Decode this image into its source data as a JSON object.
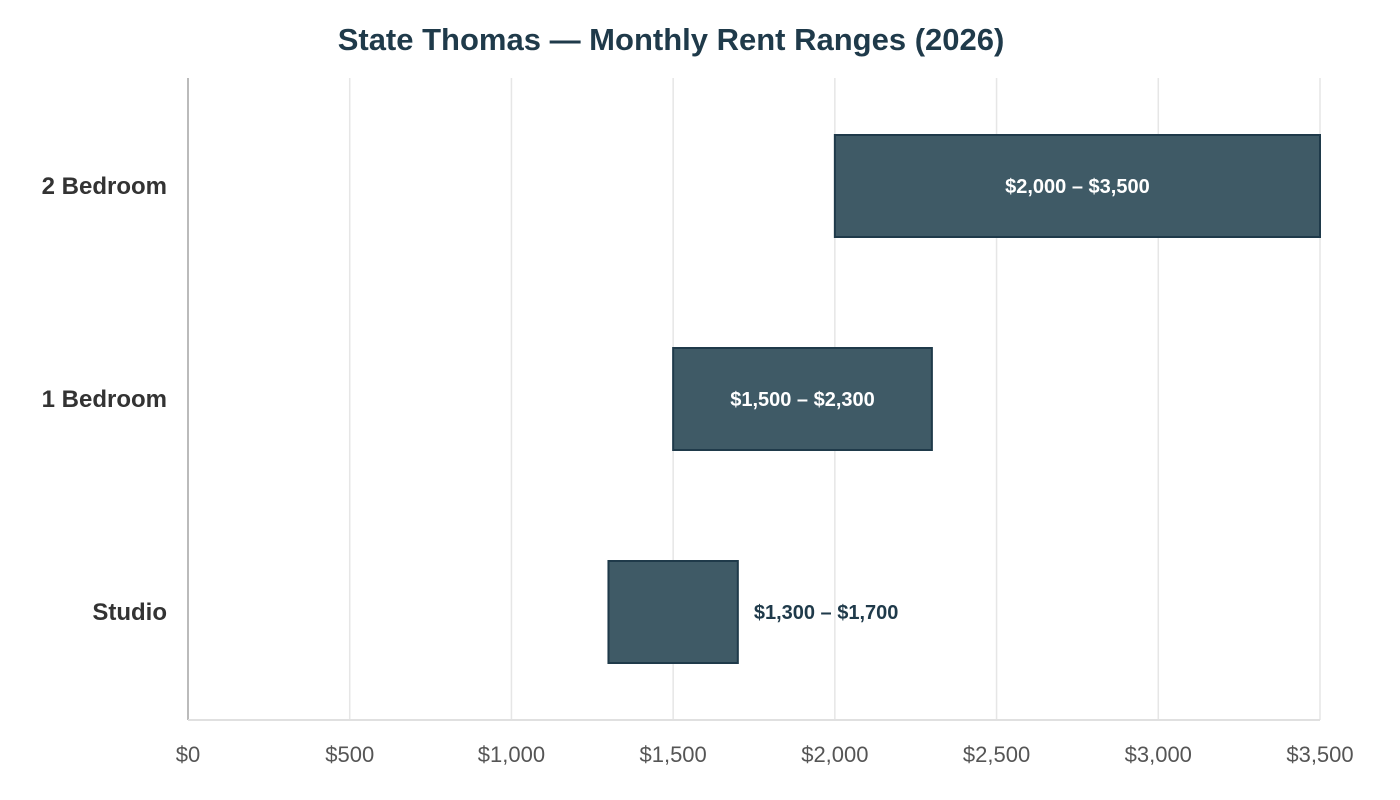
{
  "chart_data": {
    "type": "bar",
    "orientation": "horizontal",
    "title": "State Thomas — Monthly Rent Ranges (2026)",
    "xlabel": "",
    "ylabel": "",
    "xlim": [
      0,
      3500
    ],
    "x_ticks": [
      0,
      500,
      1000,
      1500,
      2000,
      2500,
      3000,
      3500
    ],
    "x_tick_labels": [
      "$0",
      "$500",
      "$1,000",
      "$1,500",
      "$2,000",
      "$2,500",
      "$3,000",
      "$3,500"
    ],
    "grid": true,
    "legend": "none",
    "bar_color": "#3f5a66",
    "bar_edge_color": "#1f3a4a",
    "categories": [
      "2 Bedroom",
      "1 Bedroom",
      "Studio"
    ],
    "ranges": [
      {
        "category": "2 Bedroom",
        "low": 2000,
        "high": 3500,
        "label": "$2,000 – $3,500",
        "label_position": "inside"
      },
      {
        "category": "1 Bedroom",
        "low": 1500,
        "high": 2300,
        "label": "$1,500 – $2,300",
        "label_position": "inside"
      },
      {
        "category": "Studio",
        "low": 1300,
        "high": 1700,
        "label": "$1,300 – $1,700",
        "label_position": "outside"
      }
    ]
  }
}
